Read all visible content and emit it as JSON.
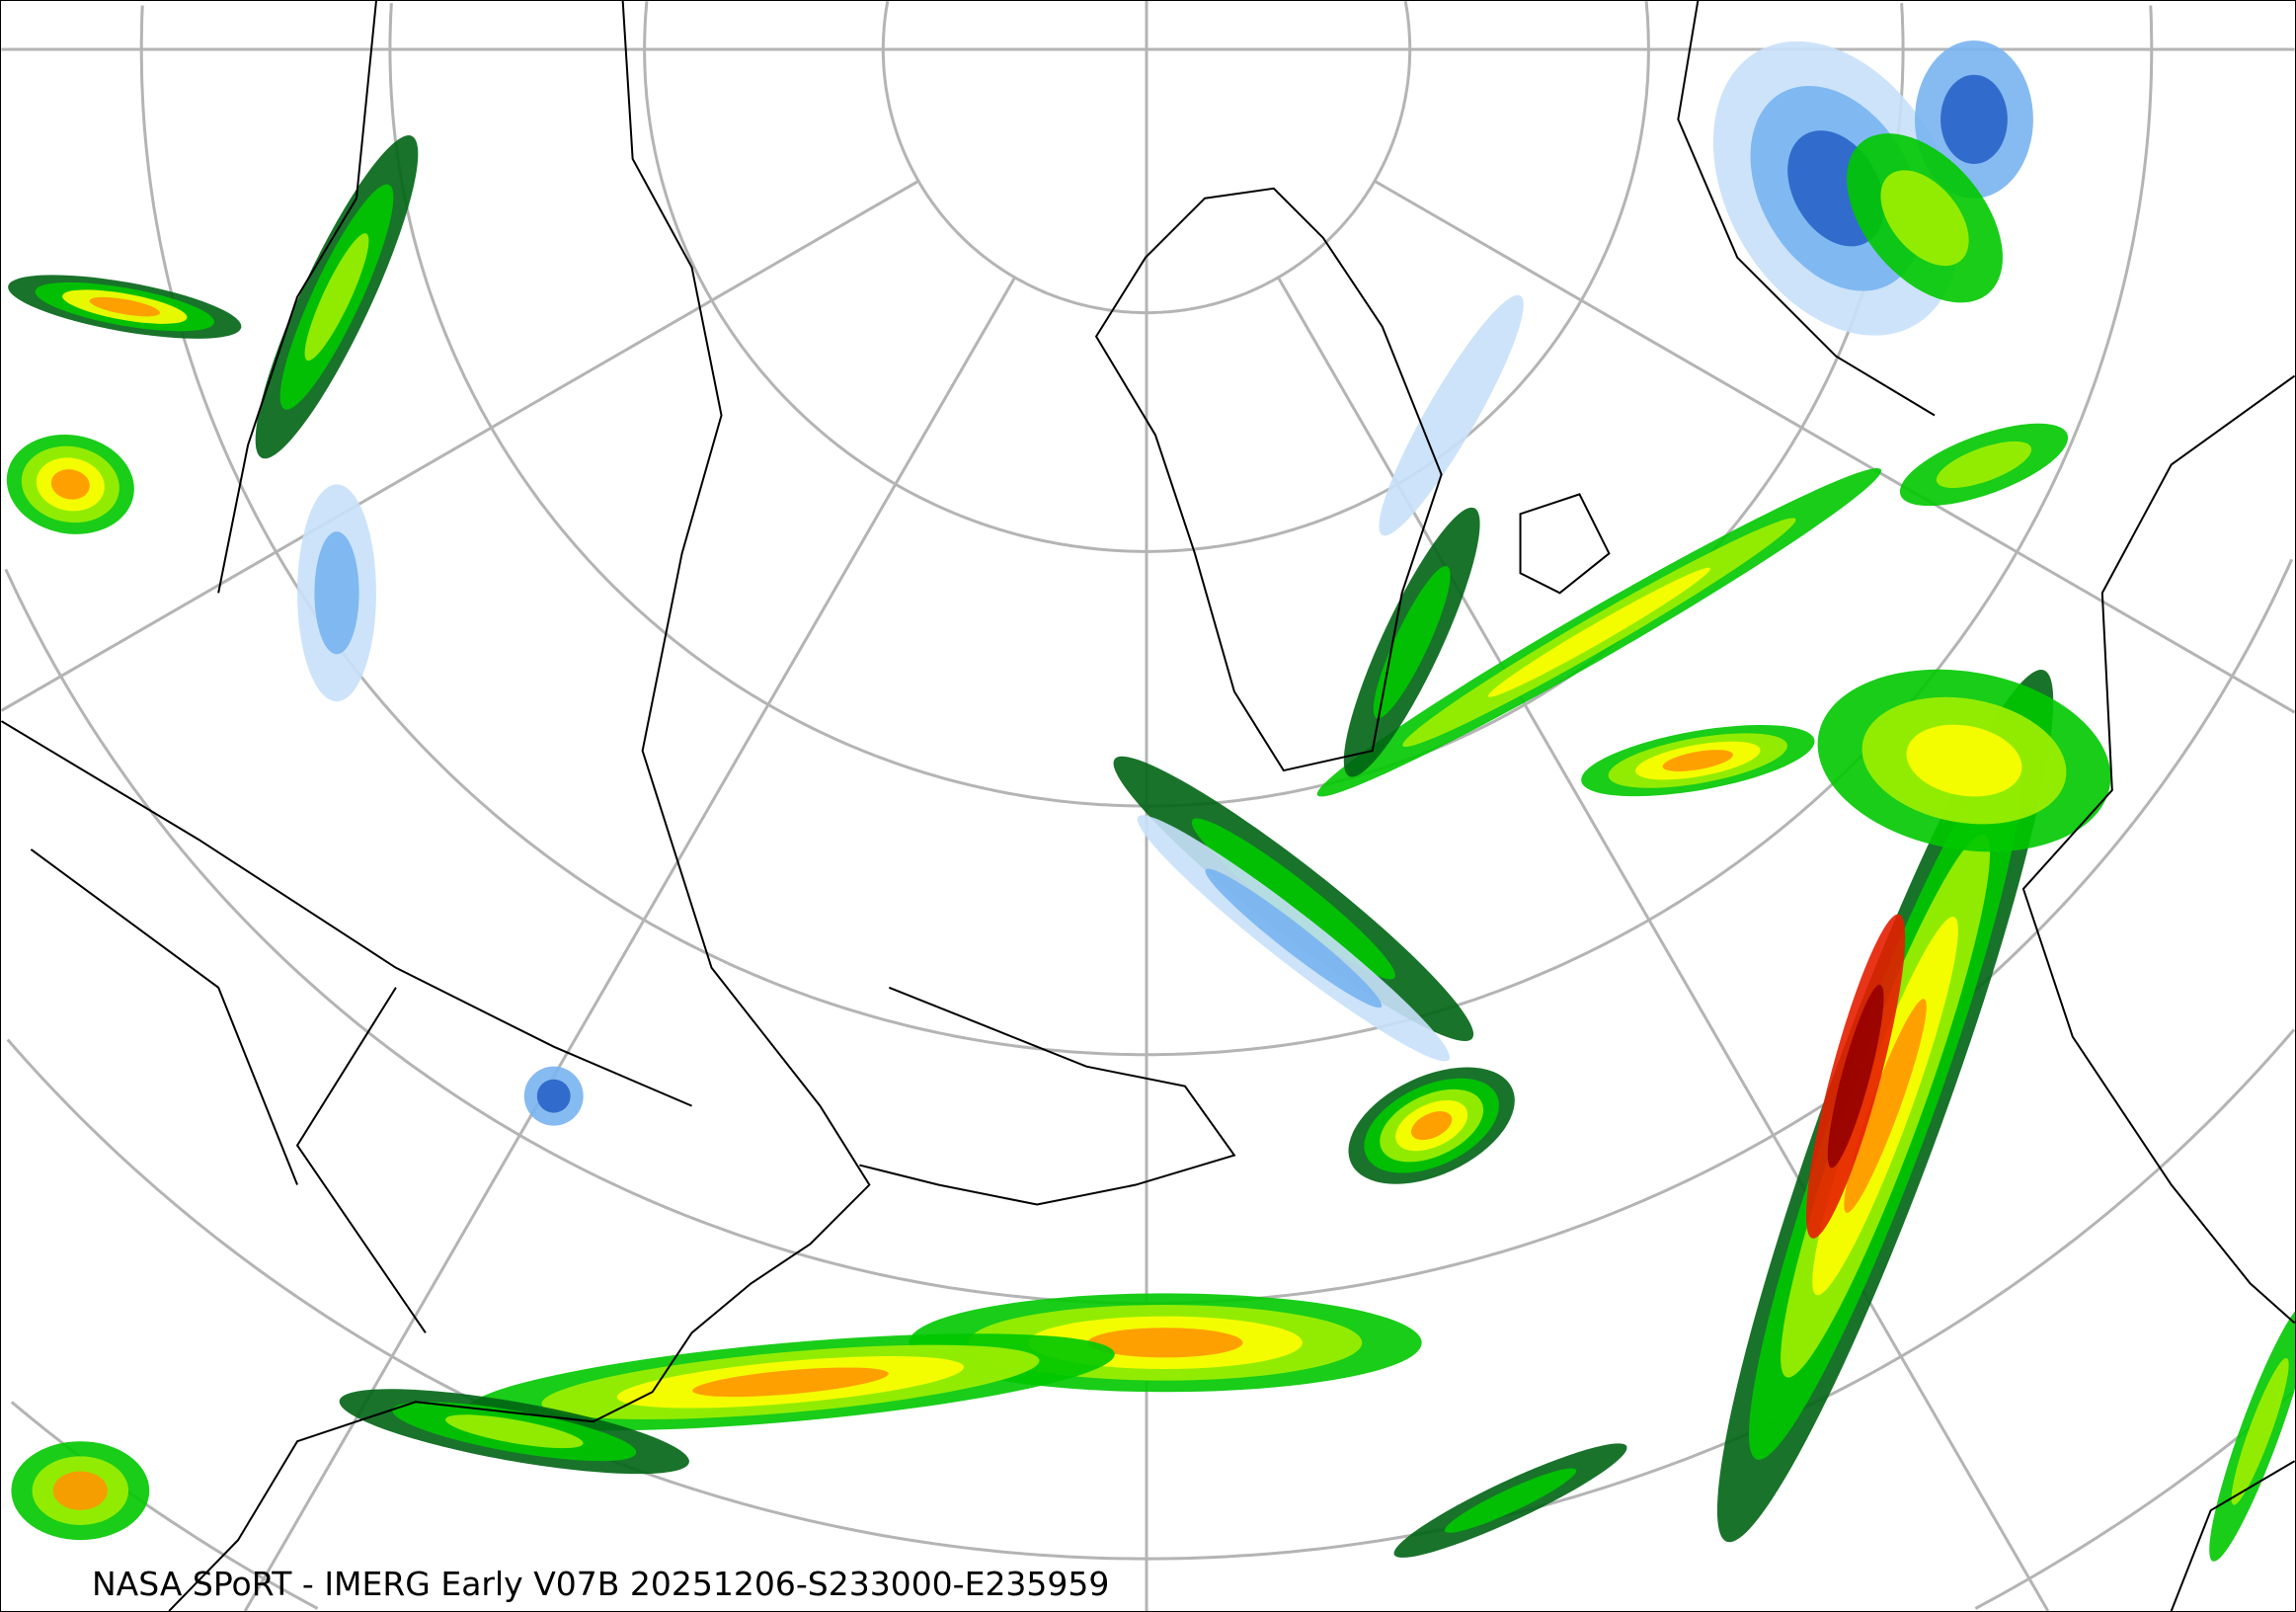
{
  "map": {
    "caption": "NASA SPoRT - IMERG Early V07B 20251206-S233000-E235959",
    "projection": "north polar stereographic",
    "graticule_color": "#b4b4b4",
    "boundary_color": "#000000",
    "precip_colors": {
      "light_snow": "#c8e0fa",
      "moderate_snow": "#78b4f0",
      "heavy_snow": "#2864c8",
      "light_rain": "#00c800",
      "dark_rain": "#006414",
      "lime_rain": "#a0f000",
      "moderate_rain": "#ffff00",
      "heavy_rain": "#ff9600",
      "very_heavy_rain": "#e61e00",
      "extreme_rain": "#960000"
    }
  }
}
